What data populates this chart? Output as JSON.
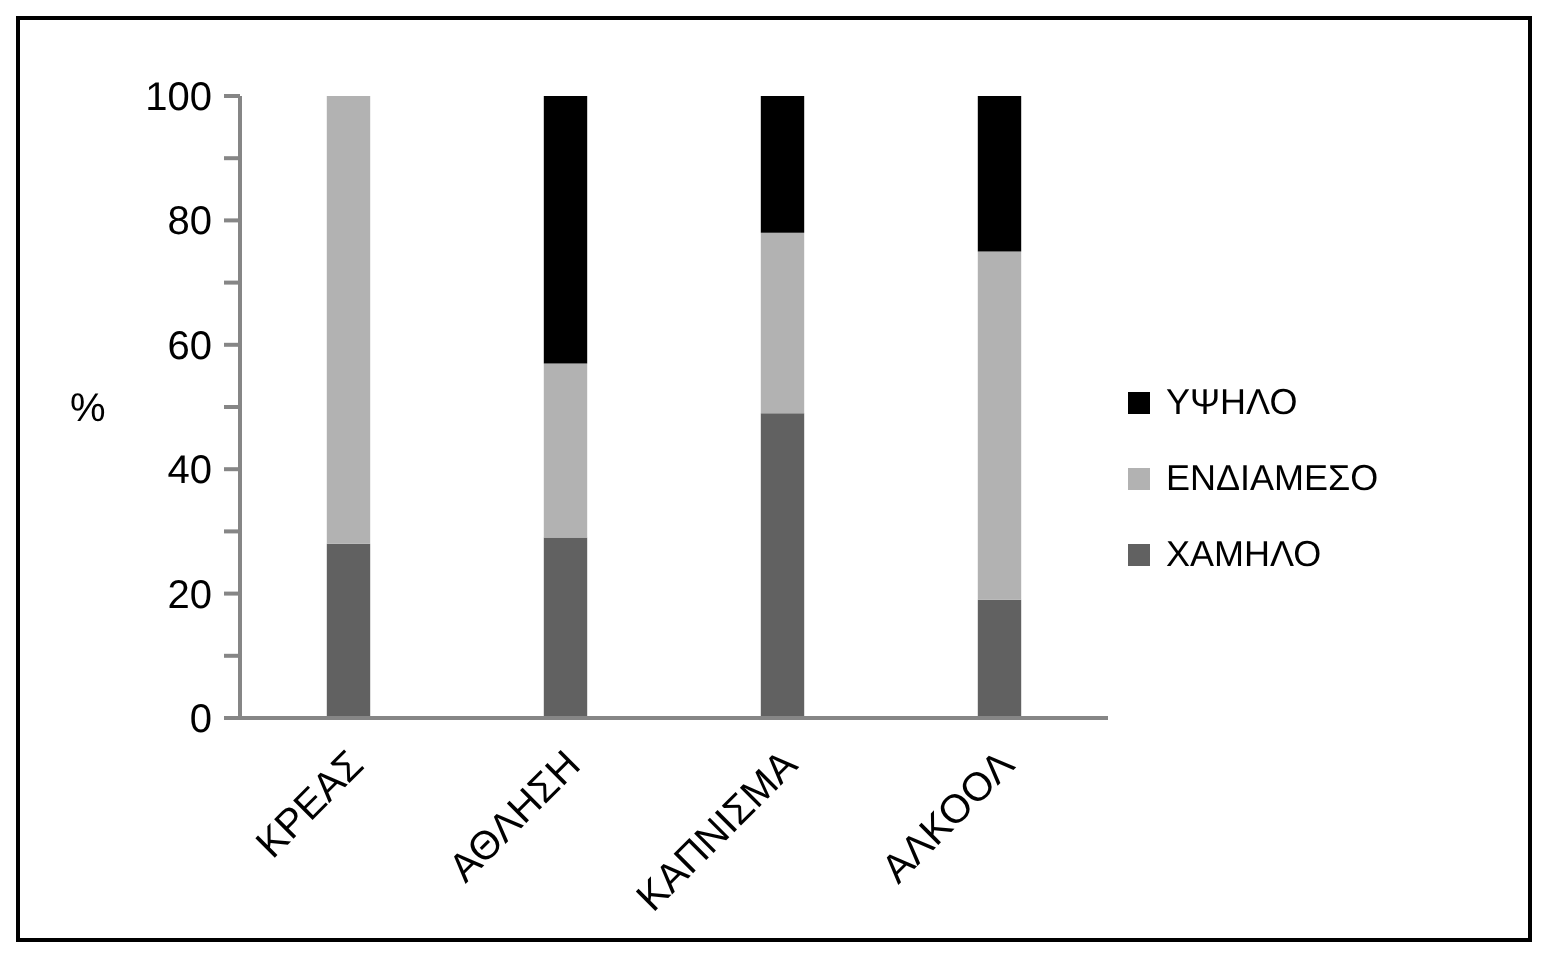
{
  "chart_data": {
    "type": "bar",
    "stacked": true,
    "ylabel": "%",
    "categories": [
      "ΚΡΕΑΣ",
      "ΑΘΛΗΣΗ",
      "ΚΑΠΝΙΣΜΑ",
      "ΑΛΚΟΟΛ"
    ],
    "series": [
      {
        "name": "ΧΑΜΗΛΟ",
        "color": "#616161",
        "values": [
          28,
          29,
          49,
          19
        ]
      },
      {
        "name": "ΕΝΔΙΑΜΕΣΟ",
        "color": "#b2b2b2",
        "values": [
          72,
          28,
          29,
          56
        ]
      },
      {
        "name": "ΥΨΗΛΟ",
        "color": "#000000",
        "values": [
          0,
          43,
          22,
          25
        ]
      }
    ],
    "ylim": [
      0,
      100
    ],
    "yticks": [
      0,
      {
        "value": 10,
        "label": null
      },
      20,
      {
        "value": 30,
        "label": null
      },
      40,
      {
        "value": 50,
        "label": null
      },
      60,
      {
        "value": 70,
        "label": null
      },
      80,
      {
        "value": 90,
        "label": null
      },
      100
    ],
    "grid": false,
    "legend": "right"
  }
}
